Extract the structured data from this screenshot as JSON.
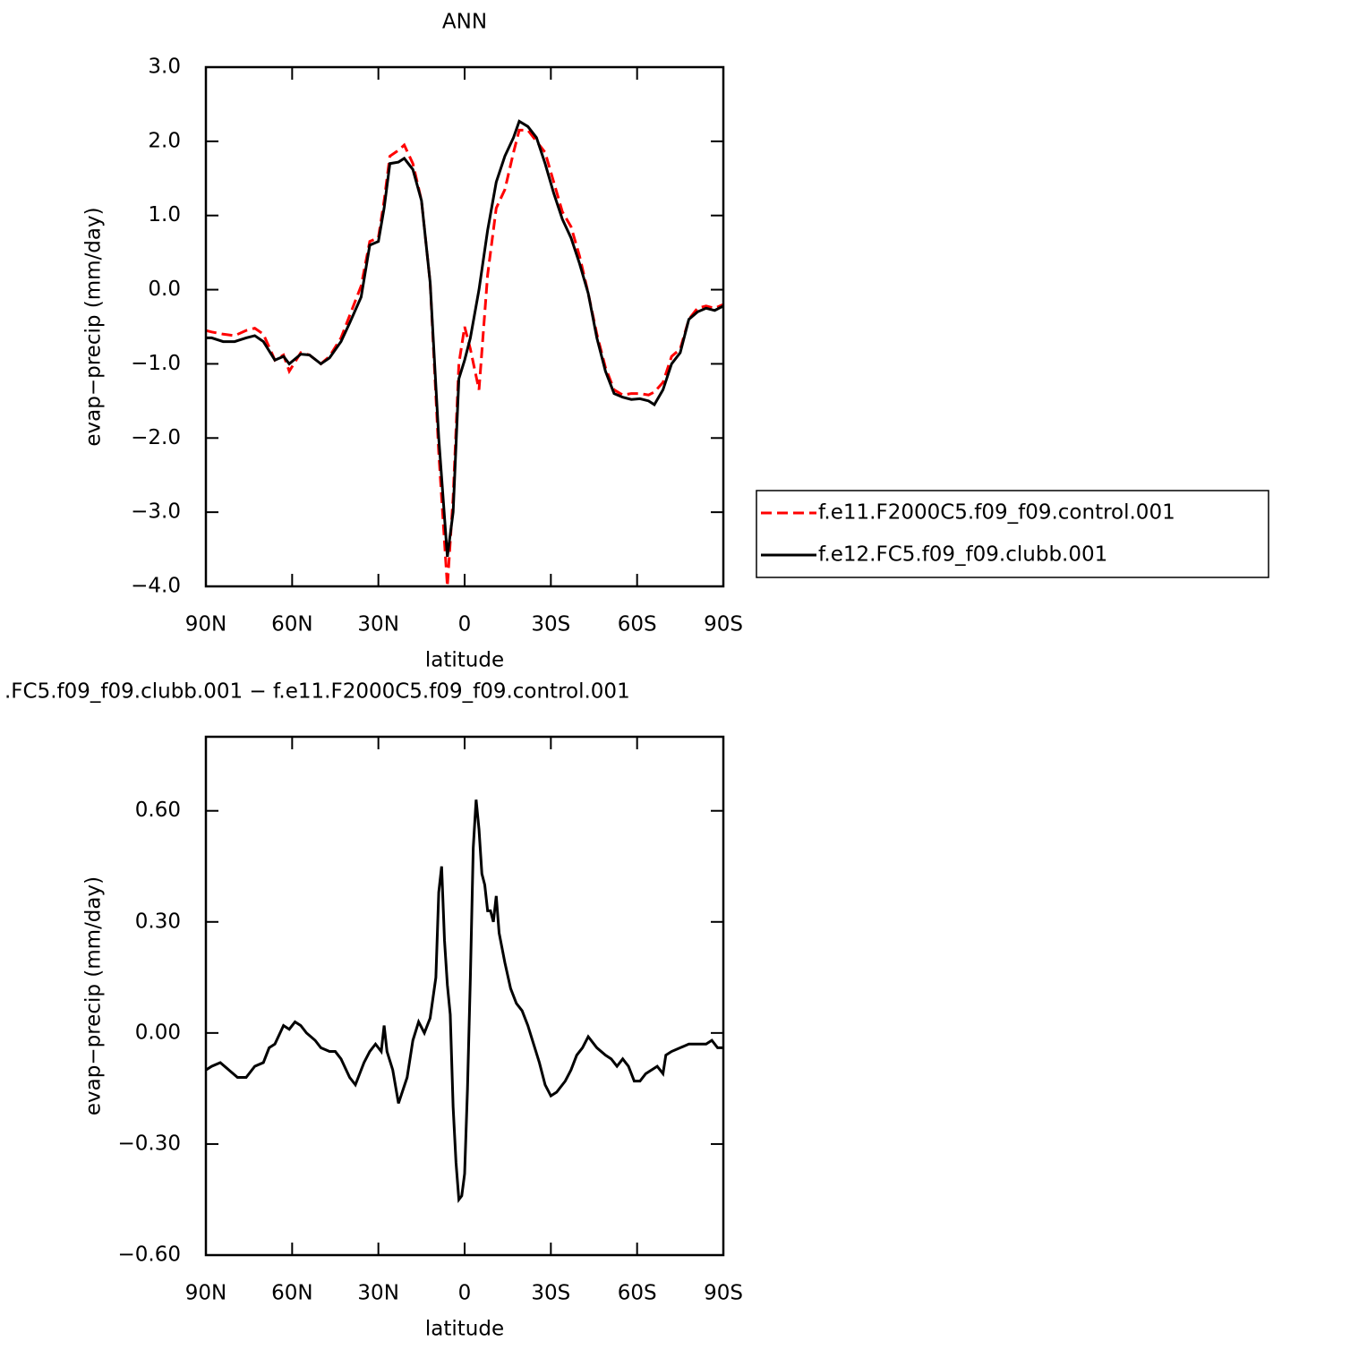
{
  "chart_data": [
    {
      "type": "line",
      "title": "ANN",
      "xlabel": "latitude",
      "ylabel": "evap−precip (mm/day)",
      "x": [
        90,
        88,
        84,
        80,
        76,
        73,
        70,
        66,
        63,
        61,
        57,
        54,
        50,
        47,
        43,
        40,
        36,
        33,
        30,
        28,
        26,
        23,
        21,
        18,
        15,
        12,
        9,
        6,
        4,
        2,
        0,
        -2,
        -5,
        -8,
        -11,
        -14,
        -17,
        -19,
        -22,
        -25,
        -28,
        -31,
        -34,
        -37,
        -40,
        -43,
        -46,
        -49,
        -52,
        -55,
        -58,
        -61,
        -64,
        -66,
        -69,
        -72,
        -75,
        -78,
        -81,
        -84,
        -87,
        -90
      ],
      "series": [
        {
          "name": "f.e11.F2000C5.f09_f09.control.001",
          "color": "#ff0000",
          "linestyle": "dashed",
          "values": [
            -0.55,
            -0.57,
            -0.6,
            -0.62,
            -0.55,
            -0.52,
            -0.6,
            -0.95,
            -0.88,
            -1.1,
            -0.85,
            -0.88,
            -1.0,
            -0.9,
            -0.65,
            -0.35,
            0.05,
            0.65,
            0.7,
            1.2,
            1.8,
            1.88,
            1.95,
            1.7,
            1.2,
            0.1,
            -2.2,
            -4.0,
            -2.8,
            -1.0,
            -0.5,
            -0.8,
            -1.35,
            0.2,
            1.1,
            1.35,
            1.85,
            2.15,
            2.15,
            2.0,
            1.85,
            1.45,
            1.05,
            0.85,
            0.45,
            -0.05,
            -0.6,
            -1.05,
            -1.35,
            -1.42,
            -1.4,
            -1.4,
            -1.42,
            -1.38,
            -1.25,
            -0.9,
            -0.8,
            -0.4,
            -0.25,
            -0.22,
            -0.25,
            -0.2
          ]
        },
        {
          "name": "f.e12.FC5.f09_f09.clubb.001",
          "color": "#000000",
          "linestyle": "solid",
          "values": [
            -0.65,
            -0.65,
            -0.7,
            -0.7,
            -0.65,
            -0.62,
            -0.7,
            -0.95,
            -0.9,
            -1.0,
            -0.87,
            -0.88,
            -1.0,
            -0.92,
            -0.7,
            -0.45,
            -0.1,
            0.6,
            0.65,
            1.1,
            1.7,
            1.72,
            1.77,
            1.62,
            1.2,
            0.1,
            -2.0,
            -3.6,
            -3.0,
            -1.2,
            -0.95,
            -0.65,
            0.0,
            0.8,
            1.45,
            1.8,
            2.05,
            2.27,
            2.2,
            2.05,
            1.7,
            1.3,
            0.95,
            0.7,
            0.35,
            -0.05,
            -0.65,
            -1.1,
            -1.4,
            -1.45,
            -1.48,
            -1.47,
            -1.5,
            -1.55,
            -1.35,
            -1.0,
            -0.85,
            -0.4,
            -0.3,
            -0.25,
            -0.28,
            -0.22
          ]
        }
      ],
      "xlim": [
        90,
        -90
      ],
      "xticks": [
        {
          "value": 90,
          "label": "90N"
        },
        {
          "value": 60,
          "label": "60N"
        },
        {
          "value": 30,
          "label": "30N"
        },
        0,
        {
          "value": -30,
          "label": "30S"
        },
        {
          "value": -60,
          "label": "60S"
        },
        {
          "value": -90,
          "label": "90S"
        }
      ],
      "ylim": [
        -4,
        3
      ],
      "yticks": [
        {
          "value": 3,
          "label": "3.0"
        },
        {
          "value": 2,
          "label": "2.0"
        },
        {
          "value": 1,
          "label": "1.0"
        },
        {
          "value": 0,
          "label": "0.0"
        },
        {
          "value": -1,
          "label": "−1.0"
        },
        {
          "value": -2,
          "label": "−2.0"
        },
        {
          "value": -3,
          "label": "−3.0"
        },
        {
          "value": -4,
          "label": "−4.0"
        }
      ],
      "legend": "right"
    },
    {
      "type": "line",
      "title": ".FC5.f09_f09.clubb.001 − f.e11.F2000C5.f09_f09.control.001",
      "xlabel": "latitude",
      "ylabel": "evap−precip (mm/day)",
      "x": [
        90,
        88,
        85,
        82,
        79,
        76,
        73,
        70,
        68,
        66,
        63,
        61,
        59,
        57,
        55,
        52,
        50,
        47,
        45,
        43,
        40,
        38,
        35,
        33,
        31,
        29,
        28,
        27,
        25,
        23,
        20,
        18,
        16,
        14,
        12,
        10,
        9,
        8,
        7,
        6,
        5,
        4,
        3,
        2,
        1,
        0,
        -1,
        -2,
        -3,
        -4,
        -5,
        -6,
        -7,
        -8,
        -9,
        -10,
        -11,
        -12,
        -14,
        -16,
        -18,
        -20,
        -22,
        -24,
        -26,
        -28,
        -30,
        -32,
        -35,
        -37,
        -39,
        -41,
        -43,
        -46,
        -49,
        -51,
        -53,
        -55,
        -57,
        -59,
        -61,
        -63,
        -65,
        -67,
        -69,
        -70,
        -72,
        -75,
        -78,
        -81,
        -84,
        -86,
        -88,
        -90
      ],
      "series": [
        {
          "color": "#000000",
          "linestyle": "solid",
          "values": [
            -0.1,
            -0.09,
            -0.08,
            -0.1,
            -0.12,
            -0.12,
            -0.09,
            -0.08,
            -0.04,
            -0.03,
            0.02,
            0.01,
            0.03,
            0.02,
            0.0,
            -0.02,
            -0.04,
            -0.05,
            -0.05,
            -0.07,
            -0.12,
            -0.14,
            -0.08,
            -0.05,
            -0.03,
            -0.05,
            0.02,
            -0.05,
            -0.1,
            -0.19,
            -0.12,
            -0.02,
            0.03,
            0.0,
            0.04,
            0.15,
            0.38,
            0.45,
            0.25,
            0.13,
            0.05,
            -0.2,
            -0.35,
            -0.45,
            -0.44,
            -0.38,
            -0.15,
            0.15,
            0.5,
            0.63,
            0.55,
            0.43,
            0.4,
            0.33,
            0.33,
            0.3,
            0.37,
            0.27,
            0.19,
            0.12,
            0.08,
            0.06,
            0.02,
            -0.03,
            -0.08,
            -0.14,
            -0.17,
            -0.16,
            -0.13,
            -0.1,
            -0.06,
            -0.04,
            -0.01,
            -0.04,
            -0.06,
            -0.07,
            -0.09,
            -0.07,
            -0.09,
            -0.13,
            -0.13,
            -0.11,
            -0.1,
            -0.09,
            -0.11,
            -0.06,
            -0.05,
            -0.04,
            -0.03,
            -0.03,
            -0.03,
            -0.02,
            -0.04,
            -0.04
          ]
        }
      ],
      "xlim": [
        90,
        -90
      ],
      "xticks": [
        {
          "value": 90,
          "label": "90N"
        },
        {
          "value": 60,
          "label": "60N"
        },
        {
          "value": 30,
          "label": "30N"
        },
        0,
        {
          "value": -30,
          "label": "30S"
        },
        {
          "value": -60,
          "label": "60S"
        },
        {
          "value": -90,
          "label": "90S"
        }
      ],
      "ylim": [
        -0.6,
        0.8
      ],
      "yticks": [
        {
          "value": 0.6,
          "label": "0.60"
        },
        {
          "value": 0.3,
          "label": "0.30"
        },
        {
          "value": 0,
          "label": "0.00"
        },
        {
          "value": -0.3,
          "label": "−0.30"
        },
        {
          "value": -0.6,
          "label": "−0.60"
        }
      ]
    }
  ]
}
